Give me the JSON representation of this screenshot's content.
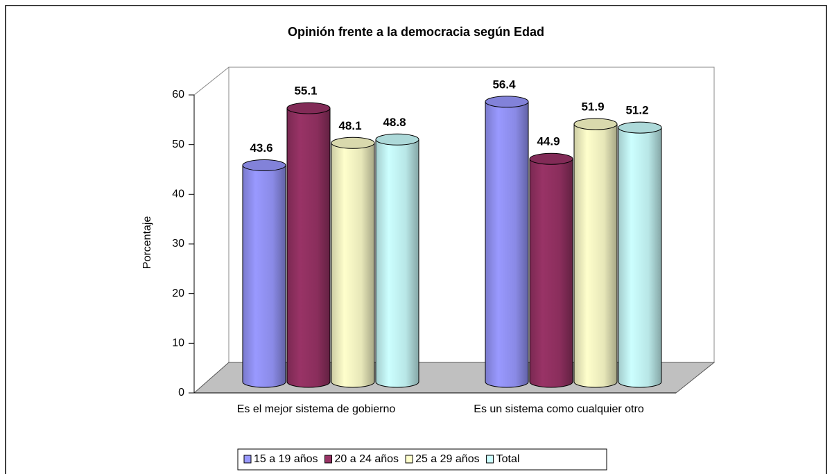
{
  "chart_data": {
    "type": "bar3d",
    "title": "Opinión frente a la democracia según Edad",
    "ylabel": "Porcentaje",
    "categories": [
      "Es el mejor sistema de gobierno",
      "Es un sistema como cualquier otro"
    ],
    "series": [
      {
        "name": "15 a 19 años",
        "color": "#9999ff",
        "values": [
          43.6,
          56.4
        ]
      },
      {
        "name": "20 a 24 años",
        "color": "#993366",
        "values": [
          55.1,
          44.9
        ]
      },
      {
        "name": "25 a 29 años",
        "color": "#ffffcc",
        "values": [
          48.1,
          51.9
        ]
      },
      {
        "name": "Total",
        "color": "#ccffff",
        "values": [
          48.8,
          51.2
        ]
      }
    ],
    "ylim": [
      0,
      60
    ],
    "yticks": [
      0,
      10,
      20,
      30,
      40,
      50,
      60
    ],
    "grid": false,
    "legend": "bottom"
  }
}
